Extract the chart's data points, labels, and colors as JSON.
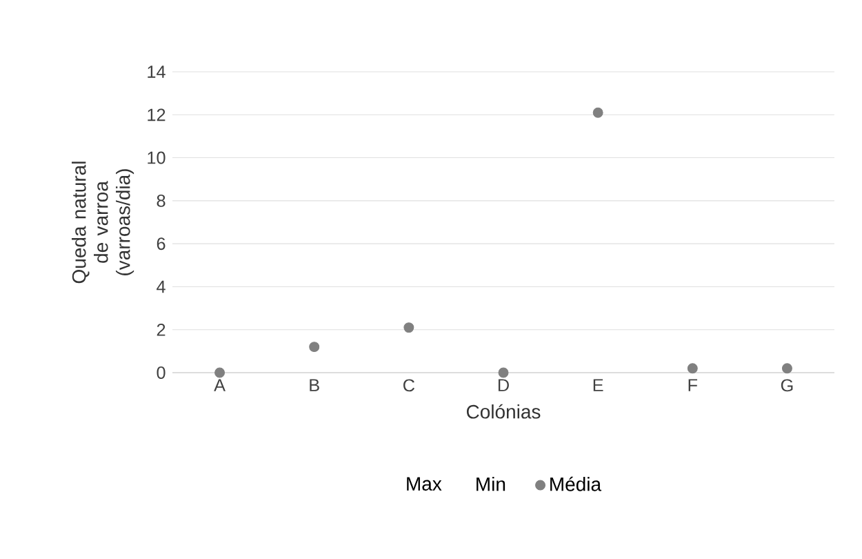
{
  "chart_data": {
    "type": "scatter",
    "xlabel": "Colónias",
    "ylabel": "Queda natural de varroa (varroas/dia)",
    "categories": [
      "A",
      "B",
      "C",
      "D",
      "E",
      "F",
      "G"
    ],
    "series": [
      {
        "name": "Max",
        "values": [
          null,
          null,
          null,
          null,
          null,
          null,
          null
        ]
      },
      {
        "name": "Min",
        "values": [
          null,
          null,
          null,
          null,
          null,
          null,
          null
        ]
      },
      {
        "name": "Média",
        "color": "#808080",
        "values": [
          0,
          1.2,
          2.1,
          0,
          12.1,
          0.2,
          0.2
        ]
      }
    ],
    "ylim": [
      0,
      14
    ],
    "yticks": [
      0,
      2,
      4,
      6,
      8,
      10,
      12,
      14
    ],
    "grid": "y",
    "legend": "bottom",
    "marker": "circle"
  }
}
